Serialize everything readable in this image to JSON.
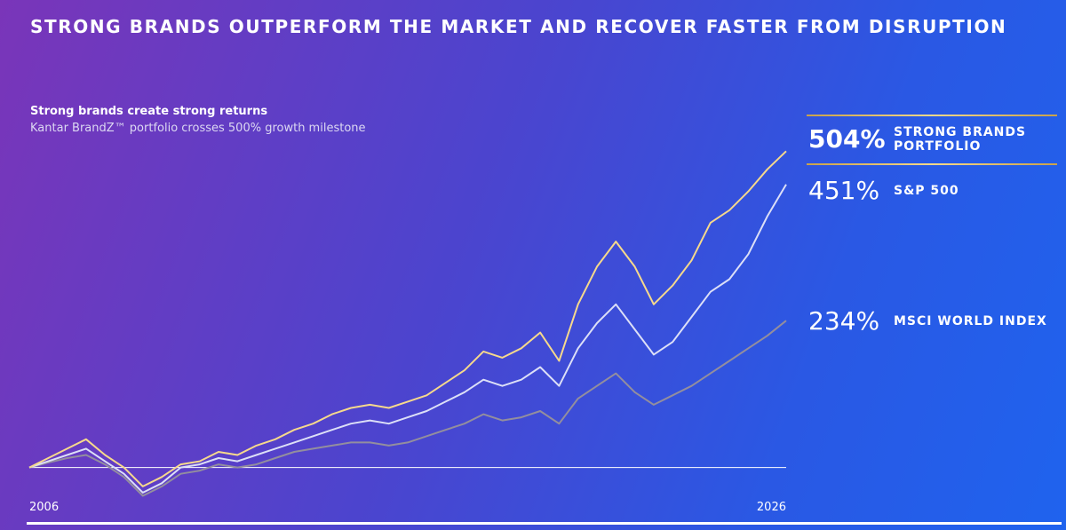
{
  "chart_data": {
    "type": "line",
    "title": "STRONG BRANDS OUTPERFORM THE MARKET AND RECOVER FASTER FROM DISRUPTION",
    "subtitle": "Strong brands create strong returns",
    "caption": "Kantar BrandZ™ portfolio crosses 500% growth milestone",
    "categories": [
      "2006",
      null,
      null,
      null,
      null,
      null,
      null,
      null,
      null,
      null,
      null,
      null,
      null,
      null,
      null,
      null,
      null,
      null,
      null,
      null,
      null,
      null,
      null,
      null,
      null,
      null,
      null,
      null,
      null,
      null,
      null,
      null,
      null,
      null,
      null,
      null,
      null,
      null,
      null,
      null,
      "2026"
    ],
    "ylim": [
      -50,
      520
    ],
    "series": [
      {
        "name": "STRONG BRANDS PORTFOLIO",
        "color": "#f6d98c",
        "values": [
          0,
          15,
          30,
          45,
          20,
          0,
          -30,
          -15,
          5,
          10,
          25,
          20,
          35,
          45,
          60,
          70,
          85,
          95,
          100,
          95,
          105,
          115,
          135,
          155,
          185,
          175,
          190,
          215,
          170,
          260,
          320,
          360,
          320,
          260,
          290,
          330,
          390,
          410,
          440,
          475,
          504
        ],
        "value_labels": [
          null,
          null,
          null,
          null,
          null,
          null,
          null,
          null,
          null,
          null,
          null,
          null,
          null,
          null,
          null,
          null,
          null,
          null,
          null,
          null,
          null,
          null,
          null,
          null,
          null,
          null,
          null,
          null,
          null,
          null,
          null,
          null,
          null,
          null,
          null,
          null,
          null,
          null,
          null,
          null,
          "504%"
        ]
      },
      {
        "name": "S&P 500",
        "color": "#dcdff7",
        "values": [
          0,
          10,
          20,
          30,
          10,
          -10,
          -40,
          -25,
          0,
          5,
          15,
          10,
          20,
          30,
          40,
          50,
          60,
          70,
          75,
          70,
          80,
          90,
          105,
          120,
          140,
          130,
          140,
          160,
          130,
          190,
          230,
          260,
          220,
          180,
          200,
          240,
          280,
          300,
          340,
          400,
          451
        ],
        "value_labels": [
          null,
          null,
          null,
          null,
          null,
          null,
          null,
          null,
          null,
          null,
          null,
          null,
          null,
          null,
          null,
          null,
          null,
          null,
          null,
          null,
          null,
          null,
          null,
          null,
          null,
          null,
          null,
          null,
          null,
          null,
          null,
          null,
          null,
          null,
          null,
          null,
          null,
          null,
          null,
          null,
          "451%"
        ]
      },
      {
        "name": "MSCI WORLD INDEX",
        "color": "#938e9e",
        "values": [
          0,
          8,
          15,
          20,
          5,
          -15,
          -45,
          -30,
          -10,
          -5,
          5,
          0,
          5,
          15,
          25,
          30,
          35,
          40,
          40,
          35,
          40,
          50,
          60,
          70,
          85,
          75,
          80,
          90,
          70,
          110,
          130,
          150,
          120,
          100,
          115,
          130,
          150,
          170,
          190,
          210,
          234
        ],
        "value_labels": [
          null,
          null,
          null,
          null,
          null,
          null,
          null,
          null,
          null,
          null,
          null,
          null,
          null,
          null,
          null,
          null,
          null,
          null,
          null,
          null,
          null,
          null,
          null,
          null,
          null,
          null,
          null,
          null,
          null,
          null,
          null,
          null,
          null,
          null,
          null,
          null,
          null,
          null,
          null,
          null,
          "234%"
        ]
      }
    ]
  }
}
